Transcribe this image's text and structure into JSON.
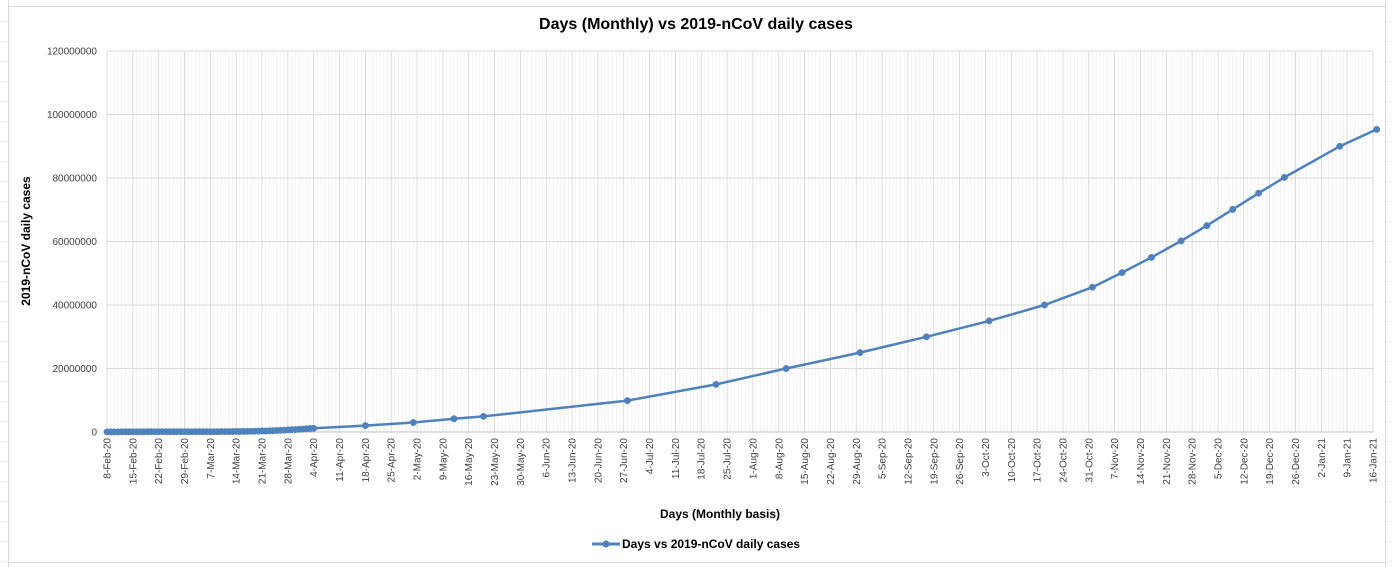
{
  "chart_data": {
    "type": "line",
    "title": "Days (Monthly) vs 2019-nCoV daily cases",
    "xlabel": "Days (Monthly basis)",
    "ylabel": "2019-nCoV daily cases",
    "ylim": [
      0,
      120000000
    ],
    "y_ticks": [
      "0",
      "20000000",
      "40000000",
      "60000000",
      "80000000",
      "100000000",
      "120000000"
    ],
    "x_range": [
      "2020-02-08",
      "2021-01-16"
    ],
    "x_ticks": [
      "8-Feb-20",
      "15-Feb-20",
      "22-Feb-20",
      "29-Feb-20",
      "7-Mar-20",
      "14-Mar-20",
      "21-Mar-20",
      "28-Mar-20",
      "4-Apr-20",
      "11-Apr-20",
      "18-Apr-20",
      "25-Apr-20",
      "2-May-20",
      "9-May-20",
      "16-May-20",
      "23-May-20",
      "30-May-20",
      "6-Jun-20",
      "13-Jun-20",
      "20-Jun-20",
      "27-Jun-20",
      "4-Jul-20",
      "11-Jul-20",
      "18-Jul-20",
      "25-Jul-20",
      "1-Aug-20",
      "8-Aug-20",
      "15-Aug-20",
      "22-Aug-20",
      "29-Aug-20",
      "5-Sep-20",
      "12-Sep-20",
      "19-Sep-20",
      "26-Sep-20",
      "3-Oct-20",
      "10-Oct-20",
      "17-Oct-20",
      "24-Oct-20",
      "31-Oct-20",
      "7-Nov-20",
      "14-Nov-20",
      "21-Nov-20",
      "28-Nov-20",
      "5-Dec-20",
      "12-Dec-20",
      "19-Dec-20",
      "26-Dec-20",
      "2-Jan-21",
      "9-Jan-21",
      "16-Jan-21"
    ],
    "grid": true,
    "legend_position": "bottom",
    "series": [
      {
        "name": "Days vs 2019-nCoV daily cases",
        "color": "#4f81bd",
        "points": [
          [
            "2020-02-08",
            30000
          ],
          [
            "2020-02-09",
            40000
          ],
          [
            "2020-02-10",
            40000
          ],
          [
            "2020-02-11",
            40000
          ],
          [
            "2020-02-12",
            50000
          ],
          [
            "2020-02-13",
            60000
          ],
          [
            "2020-02-14",
            60000
          ],
          [
            "2020-02-15",
            70000
          ],
          [
            "2020-02-16",
            70000
          ],
          [
            "2020-02-17",
            70000
          ],
          [
            "2020-02-18",
            70000
          ],
          [
            "2020-02-19",
            80000
          ],
          [
            "2020-02-20",
            80000
          ],
          [
            "2020-02-21",
            80000
          ],
          [
            "2020-02-22",
            80000
          ],
          [
            "2020-02-23",
            80000
          ],
          [
            "2020-02-24",
            80000
          ],
          [
            "2020-02-25",
            80000
          ],
          [
            "2020-02-26",
            80000
          ],
          [
            "2020-02-27",
            80000
          ],
          [
            "2020-02-28",
            80000
          ],
          [
            "2020-02-29",
            90000
          ],
          [
            "2020-03-01",
            90000
          ],
          [
            "2020-03-02",
            90000
          ],
          [
            "2020-03-03",
            90000
          ],
          [
            "2020-03-04",
            90000
          ],
          [
            "2020-03-05",
            100000
          ],
          [
            "2020-03-06",
            100000
          ],
          [
            "2020-03-07",
            100000
          ],
          [
            "2020-03-08",
            110000
          ],
          [
            "2020-03-09",
            110000
          ],
          [
            "2020-03-10",
            120000
          ],
          [
            "2020-03-11",
            120000
          ],
          [
            "2020-03-12",
            130000
          ],
          [
            "2020-03-13",
            140000
          ],
          [
            "2020-03-14",
            150000
          ],
          [
            "2020-03-15",
            160000
          ],
          [
            "2020-03-16",
            180000
          ],
          [
            "2020-03-17",
            200000
          ],
          [
            "2020-03-18",
            210000
          ],
          [
            "2020-03-19",
            240000
          ],
          [
            "2020-03-20",
            270000
          ],
          [
            "2020-03-21",
            300000
          ],
          [
            "2020-03-22",
            330000
          ],
          [
            "2020-03-23",
            370000
          ],
          [
            "2020-03-24",
            410000
          ],
          [
            "2020-03-25",
            460000
          ],
          [
            "2020-03-26",
            520000
          ],
          [
            "2020-03-27",
            580000
          ],
          [
            "2020-03-28",
            650000
          ],
          [
            "2020-03-29",
            710000
          ],
          [
            "2020-03-30",
            770000
          ],
          [
            "2020-03-31",
            850000
          ],
          [
            "2020-04-01",
            920000
          ],
          [
            "2020-04-02",
            1010000
          ],
          [
            "2020-04-03",
            1090000
          ],
          [
            "2020-04-04",
            1180000
          ],
          [
            "2020-04-18",
            2000000
          ],
          [
            "2020-05-01",
            3000000
          ],
          [
            "2020-05-12",
            4200000
          ],
          [
            "2020-05-20",
            4900000
          ],
          [
            "2020-06-28",
            9900000
          ],
          [
            "2020-07-22",
            15000000
          ],
          [
            "2020-08-10",
            20000000
          ],
          [
            "2020-08-30",
            25000000
          ],
          [
            "2020-09-17",
            30000000
          ],
          [
            "2020-10-04",
            35000000
          ],
          [
            "2020-10-19",
            40000000
          ],
          [
            "2020-11-01",
            45600000
          ],
          [
            "2020-11-09",
            50200000
          ],
          [
            "2020-11-17",
            55000000
          ],
          [
            "2020-11-25",
            60200000
          ],
          [
            "2020-12-02",
            65000000
          ],
          [
            "2020-12-09",
            70100000
          ],
          [
            "2020-12-16",
            75200000
          ],
          [
            "2020-12-23",
            80200000
          ],
          [
            "2021-01-07",
            90000000
          ],
          [
            "2021-01-17",
            95300000
          ]
        ]
      }
    ]
  }
}
